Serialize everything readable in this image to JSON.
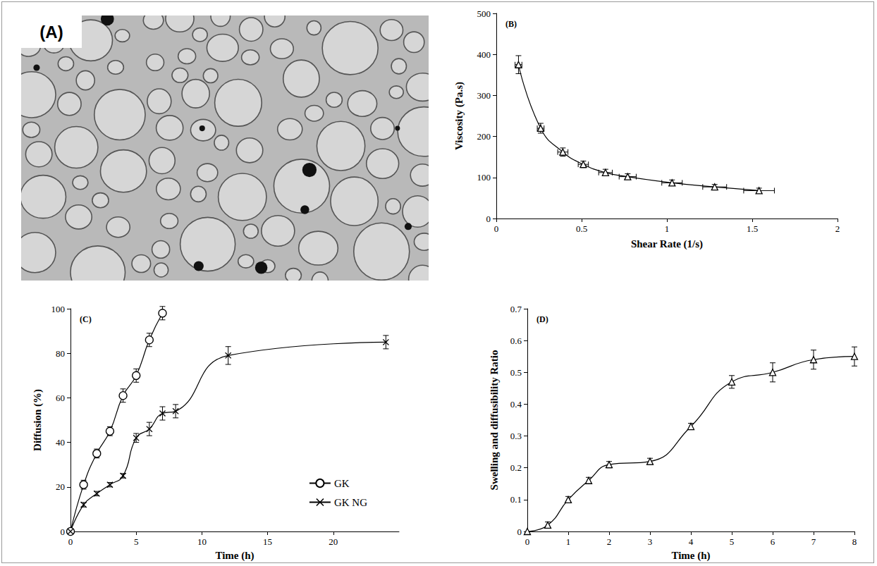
{
  "image_panel": {
    "label": "(A)"
  },
  "chart_data": [
    {
      "type": "line",
      "title": "(B)",
      "x_label": "Shear Rate (1/s)",
      "y_label": "Viscosity (Pa.s)",
      "xlim": [
        0,
        2
      ],
      "xticks": [
        0,
        0.5,
        1,
        1.5,
        2
      ],
      "ylim": [
        0,
        500
      ],
      "yticks": [
        0,
        100,
        200,
        300,
        400,
        500
      ],
      "grid": false,
      "series": [
        {
          "color": "#000000",
          "marker": "triangle",
          "line_style": "solid",
          "x": [
            0.13,
            0.26,
            0.39,
            0.51,
            0.64,
            0.77,
            1.03,
            1.28,
            1.54
          ],
          "values": [
            375,
            220,
            162,
            132,
            112,
            102,
            87,
            77,
            68
          ],
          "y_errors": [
            22,
            12,
            10,
            8,
            8,
            7,
            7,
            6,
            6
          ],
          "x_errors": [
            0.02,
            0.02,
            0.03,
            0.03,
            0.04,
            0.05,
            0.06,
            0.07,
            0.09
          ]
        }
      ]
    },
    {
      "type": "line",
      "title": "(C)",
      "x_label": "Time (h)",
      "y_label": "Diffusion (%)",
      "xlim": [
        0,
        25
      ],
      "xticks": [
        0,
        5,
        10,
        15,
        20
      ],
      "ylim": [
        0,
        100
      ],
      "yticks": [
        0,
        20,
        40,
        60,
        80,
        100
      ],
      "grid": false,
      "legend": "lower right",
      "series": [
        {
          "name": "GK",
          "color": "#000000",
          "marker": "circle",
          "line_style": "solid",
          "x": [
            0,
            1,
            2,
            3,
            4,
            5,
            6,
            7
          ],
          "values": [
            0,
            21,
            35,
            45,
            61,
            70,
            86,
            98
          ],
          "y_errors": [
            0,
            2,
            2,
            2,
            3,
            3,
            3,
            3
          ]
        },
        {
          "name": "GK NG",
          "color": "#000000",
          "marker": "x",
          "line_style": "solid",
          "x": [
            0,
            1,
            2,
            3,
            4,
            5,
            6,
            7,
            8,
            12,
            24
          ],
          "values": [
            0,
            12,
            17,
            21,
            25,
            42,
            46,
            53,
            54,
            79,
            85
          ],
          "y_errors": [
            0,
            1,
            1,
            1,
            1,
            2,
            3,
            3,
            3,
            4,
            3
          ]
        }
      ]
    },
    {
      "type": "line",
      "title": "(D)",
      "x_label": "Time (h)",
      "y_label": "Swelling and diffusibility Ratio",
      "xlim": [
        0,
        8
      ],
      "xticks": [
        0,
        1,
        2,
        3,
        4,
        5,
        6,
        7,
        8
      ],
      "ylim": [
        0,
        0.7
      ],
      "yticks": [
        0,
        0.1,
        0.2,
        0.3,
        0.4,
        0.5,
        0.6,
        0.7
      ],
      "grid": false,
      "series": [
        {
          "color": "#000000",
          "marker": "triangle",
          "line_style": "solid",
          "x": [
            0,
            0.5,
            1,
            1.5,
            2,
            3,
            4,
            5,
            6,
            7,
            8
          ],
          "values": [
            0,
            0.02,
            0.1,
            0.16,
            0.21,
            0.22,
            0.33,
            0.47,
            0.5,
            0.54,
            0.55
          ],
          "y_errors": [
            0,
            0.01,
            0.01,
            0.01,
            0.01,
            0.01,
            0.01,
            0.02,
            0.03,
            0.03,
            0.03
          ]
        }
      ]
    }
  ]
}
